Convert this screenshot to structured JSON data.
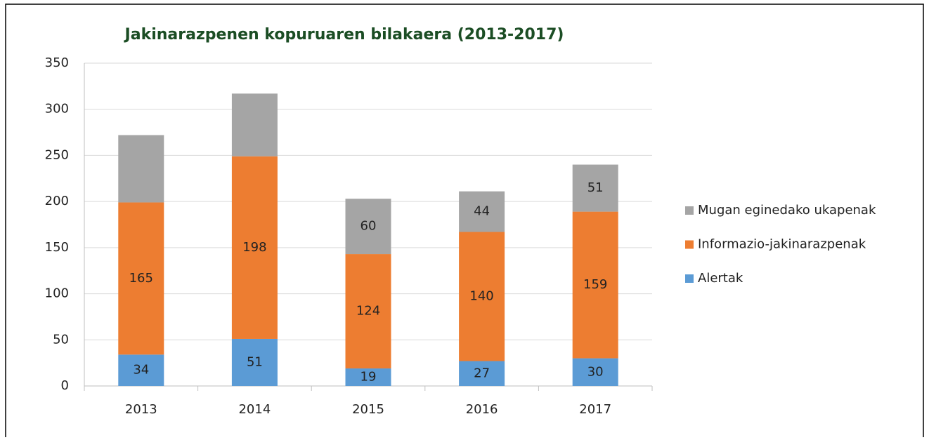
{
  "chart_data": {
    "type": "stacked_bar",
    "title": "Jakinarazpenen kopuruaren bilakaera (2013-2017)",
    "categories": [
      "2013",
      "2014",
      "2015",
      "2016",
      "2017"
    ],
    "series": [
      {
        "name": "Alertak",
        "color": "#5b9bd5",
        "values": [
          34,
          51,
          19,
          27,
          30
        ]
      },
      {
        "name": "Informazio-jakinarazpenak",
        "color": "#ed7d31",
        "values": [
          165,
          198,
          124,
          140,
          159
        ]
      },
      {
        "name": "Mugan eginedako ukapenak",
        "color": "#a5a5a5",
        "values": [
          73,
          68,
          60,
          44,
          51
        ],
        "value_labels": [
          null,
          null,
          "60",
          "44",
          "51"
        ]
      }
    ],
    "ylim": [
      0,
      350
    ],
    "yticks": [
      0,
      50,
      100,
      150,
      200,
      250,
      300,
      350
    ],
    "grid": true,
    "legend": "right"
  }
}
